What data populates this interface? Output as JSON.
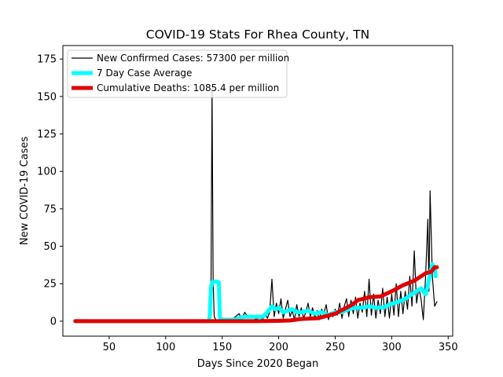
{
  "chart_data": {
    "type": "line",
    "title": "COVID-19 Stats For Rhea County, TN",
    "xlabel": "Days Since 2020 Began",
    "ylabel": "New COVID-19 Cases",
    "xlim": [
      9,
      354
    ],
    "ylim": [
      -10,
      184
    ],
    "xticks": [
      50,
      100,
      150,
      200,
      250,
      300,
      350
    ],
    "yticks": [
      0,
      25,
      50,
      75,
      100,
      125,
      150,
      175
    ],
    "grid": false,
    "legend_position": "top-left",
    "series": [
      {
        "name": "New Confirmed Cases: 57300 per million",
        "color": "#000000",
        "points": [
          [
            20,
            0
          ],
          [
            100,
            0
          ],
          [
            120,
            0
          ],
          [
            135,
            0
          ],
          [
            138,
            0
          ],
          [
            139,
            2
          ],
          [
            140,
            5
          ],
          [
            141,
            155
          ],
          [
            142,
            25
          ],
          [
            143,
            3
          ],
          [
            145,
            0
          ],
          [
            150,
            1
          ],
          [
            155,
            0
          ],
          [
            160,
            2
          ],
          [
            165,
            5
          ],
          [
            167,
            1
          ],
          [
            170,
            6
          ],
          [
            173,
            2
          ],
          [
            176,
            4
          ],
          [
            180,
            1
          ],
          [
            183,
            3
          ],
          [
            186,
            1
          ],
          [
            188,
            5
          ],
          [
            190,
            2
          ],
          [
            192,
            6
          ],
          [
            194,
            28
          ],
          [
            196,
            3
          ],
          [
            198,
            12
          ],
          [
            200,
            5
          ],
          [
            202,
            15
          ],
          [
            204,
            2
          ],
          [
            206,
            8
          ],
          [
            208,
            14
          ],
          [
            210,
            3
          ],
          [
            212,
            7
          ],
          [
            214,
            1
          ],
          [
            216,
            11
          ],
          [
            218,
            3
          ],
          [
            220,
            9
          ],
          [
            222,
            2
          ],
          [
            224,
            6
          ],
          [
            226,
            12
          ],
          [
            228,
            3
          ],
          [
            230,
            9
          ],
          [
            232,
            2
          ],
          [
            234,
            7
          ],
          [
            236,
            1
          ],
          [
            238,
            8
          ],
          [
            240,
            5
          ],
          [
            242,
            11
          ],
          [
            244,
            1
          ],
          [
            246,
            6
          ],
          [
            248,
            3
          ],
          [
            250,
            8
          ],
          [
            252,
            4
          ],
          [
            254,
            12
          ],
          [
            256,
            2
          ],
          [
            258,
            10
          ],
          [
            260,
            15
          ],
          [
            262,
            3
          ],
          [
            264,
            14
          ],
          [
            266,
            5
          ],
          [
            268,
            16
          ],
          [
            270,
            2
          ],
          [
            272,
            12
          ],
          [
            274,
            6
          ],
          [
            276,
            20
          ],
          [
            278,
            3
          ],
          [
            280,
            28
          ],
          [
            282,
            4
          ],
          [
            284,
            18
          ],
          [
            286,
            2
          ],
          [
            288,
            14
          ],
          [
            290,
            5
          ],
          [
            292,
            22
          ],
          [
            294,
            3
          ],
          [
            296,
            16
          ],
          [
            298,
            2
          ],
          [
            300,
            18
          ],
          [
            302,
            4
          ],
          [
            304,
            25
          ],
          [
            306,
            3
          ],
          [
            308,
            20
          ],
          [
            310,
            5
          ],
          [
            312,
            20
          ],
          [
            314,
            8
          ],
          [
            316,
            30
          ],
          [
            318,
            10
          ],
          [
            320,
            47
          ],
          [
            322,
            12
          ],
          [
            324,
            22
          ],
          [
            326,
            15
          ],
          [
            328,
            1
          ],
          [
            330,
            30
          ],
          [
            332,
            68
          ],
          [
            333,
            20
          ],
          [
            334,
            87
          ],
          [
            336,
            30
          ],
          [
            338,
            10
          ],
          [
            340,
            13
          ]
        ]
      },
      {
        "name": "7 Day Case Average",
        "color": "#00ffff",
        "points": [
          [
            20,
            0
          ],
          [
            138,
            0
          ],
          [
            139,
            3
          ],
          [
            140,
            22
          ],
          [
            141,
            26
          ],
          [
            144,
            26.5
          ],
          [
            147,
            26
          ],
          [
            148,
            2
          ],
          [
            150,
            1
          ],
          [
            160,
            1
          ],
          [
            165,
            2
          ],
          [
            170,
            3
          ],
          [
            180,
            3
          ],
          [
            186,
            3
          ],
          [
            190,
            6
          ],
          [
            194,
            10
          ],
          [
            197,
            8
          ],
          [
            200,
            9
          ],
          [
            204,
            6
          ],
          [
            208,
            7
          ],
          [
            212,
            8
          ],
          [
            216,
            6
          ],
          [
            220,
            6
          ],
          [
            226,
            7
          ],
          [
            232,
            5
          ],
          [
            238,
            6
          ],
          [
            244,
            4
          ],
          [
            250,
            6
          ],
          [
            256,
            6
          ],
          [
            262,
            8
          ],
          [
            268,
            9
          ],
          [
            274,
            9
          ],
          [
            280,
            10
          ],
          [
            286,
            9
          ],
          [
            292,
            9
          ],
          [
            298,
            11
          ],
          [
            302,
            12
          ],
          [
            306,
            13
          ],
          [
            310,
            14
          ],
          [
            314,
            16
          ],
          [
            318,
            18
          ],
          [
            322,
            20
          ],
          [
            326,
            22
          ],
          [
            330,
            18
          ],
          [
            332,
            24
          ],
          [
            334,
            32
          ],
          [
            336,
            38
          ],
          [
            338,
            36
          ],
          [
            339,
            30
          ]
        ]
      },
      {
        "name": "Cumulative Deaths: 1085.4 per million",
        "color": "#e00000",
        "points": [
          [
            20,
            0
          ],
          [
            150,
            0
          ],
          [
            180,
            0
          ],
          [
            200,
            0.2
          ],
          [
            210,
            0.5
          ],
          [
            220,
            1.5
          ],
          [
            235,
            2
          ],
          [
            245,
            4
          ],
          [
            250,
            5
          ],
          [
            255,
            7
          ],
          [
            260,
            9
          ],
          [
            265,
            11
          ],
          [
            270,
            14
          ],
          [
            280,
            16
          ],
          [
            290,
            16.5
          ],
          [
            300,
            20
          ],
          [
            305,
            22
          ],
          [
            310,
            24
          ],
          [
            320,
            27
          ],
          [
            330,
            32
          ],
          [
            335,
            33
          ],
          [
            338,
            36
          ],
          [
            340,
            36
          ]
        ]
      }
    ]
  }
}
